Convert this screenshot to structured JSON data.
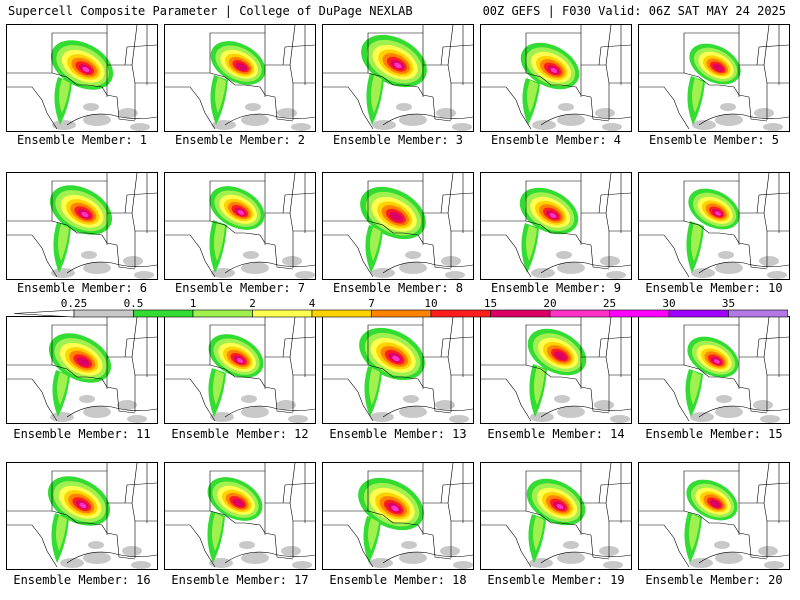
{
  "header": {
    "title_left": "Supercell Composite Parameter | College of DuPage NEXLAB",
    "title_right": "00Z GEFS | F030 Valid: 06Z SAT MAY 24 2025"
  },
  "member_label_prefix": "Ensemble Member: ",
  "members": [
    "1",
    "2",
    "3",
    "4",
    "5",
    "6",
    "7",
    "8",
    "9",
    "10",
    "11",
    "12",
    "13",
    "14",
    "15",
    "16",
    "17",
    "18",
    "19",
    "20"
  ],
  "colorbar": {
    "ticks": [
      "0.25",
      "0.5",
      "1",
      "2",
      "4",
      "7",
      "10",
      "15",
      "20",
      "25",
      "30",
      "35"
    ],
    "colors": [
      "#c8c8c8",
      "#32dc32",
      "#a0f050",
      "#ffff50",
      "#ffd200",
      "#ff8200",
      "#ff1e1e",
      "#dc0064",
      "#ff32c8",
      "#ff00ff",
      "#a000ff",
      "#b478e6",
      "#5ef0f0"
    ]
  }
}
